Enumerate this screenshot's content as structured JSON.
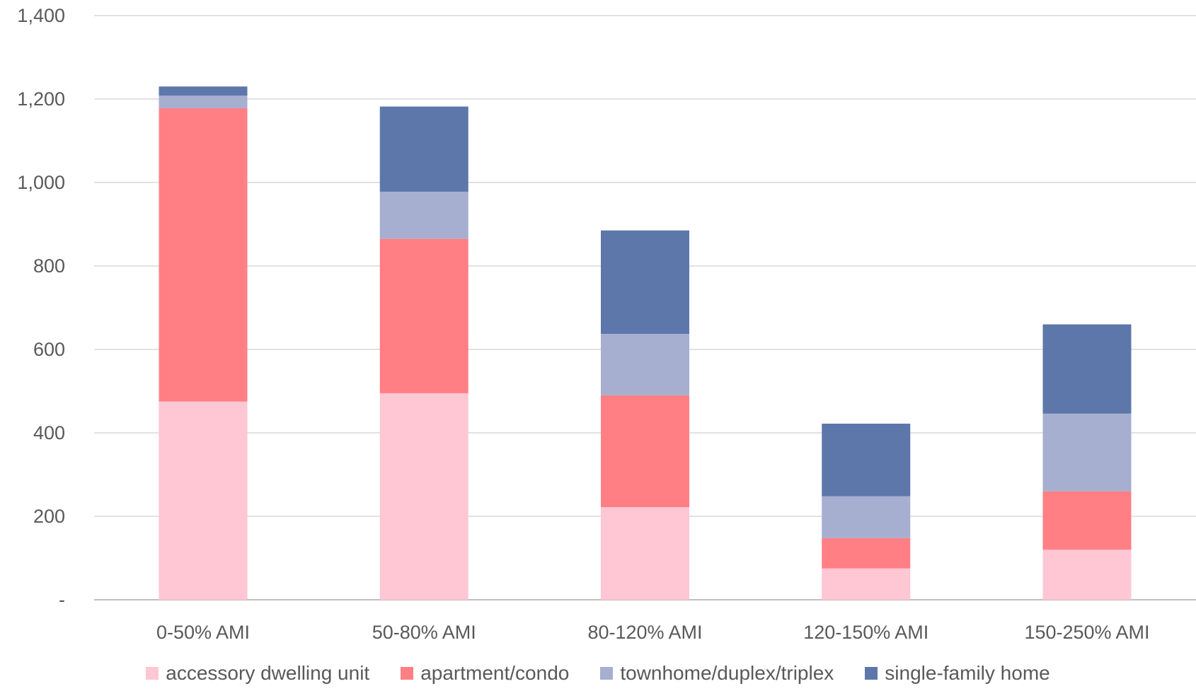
{
  "chart_data": {
    "type": "bar",
    "stacked": true,
    "categories": [
      "0-50% AMI",
      "50-80% AMI",
      "80-120% AMI",
      "120-150% AMI",
      "150-250% AMI"
    ],
    "series": [
      {
        "name": "accessory dwelling unit",
        "color": "#ffc6d4",
        "values": [
          475,
          495,
          222,
          75,
          120
        ]
      },
      {
        "name": "apartment/condo",
        "color": "#ff7f85",
        "values": [
          703,
          370,
          268,
          73,
          140
        ]
      },
      {
        "name": "townhome/duplex/triplex",
        "color": "#a6afd0",
        "values": [
          30,
          113,
          147,
          100,
          186
        ]
      },
      {
        "name": "single-family home",
        "color": "#5d77aa",
        "values": [
          22,
          204,
          248,
          174,
          214
        ]
      }
    ],
    "ylim": [
      0,
      1400
    ],
    "yticks": [
      0,
      200,
      400,
      600,
      800,
      1000,
      1200,
      1400
    ],
    "ytick_labels": [
      "-",
      "200",
      "400",
      "600",
      "800",
      "1,000",
      "1,200",
      "1,400"
    ],
    "grid": true,
    "legend_position": "bottom",
    "title": "",
    "xlabel": "",
    "ylabel": ""
  }
}
